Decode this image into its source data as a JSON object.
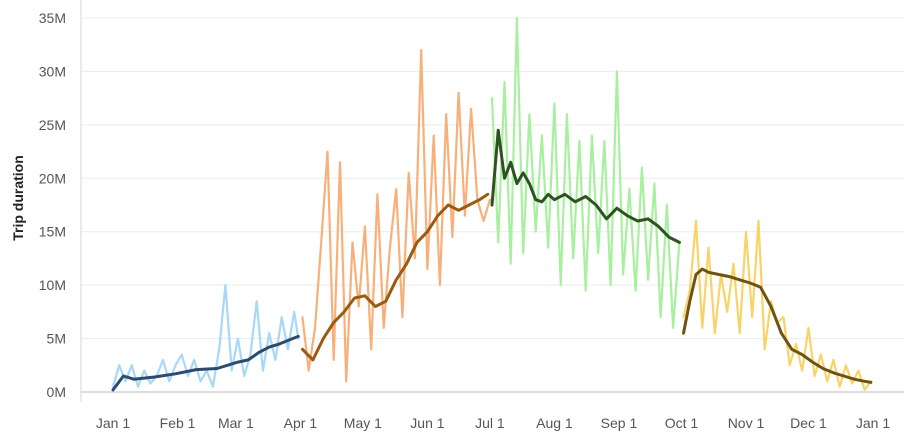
{
  "chart_data": {
    "type": "line",
    "title": "",
    "xlabel": "",
    "ylabel": "Trip duration",
    "ylim": [
      0,
      35000000
    ],
    "xlim": [
      "Jan 1",
      "Jan 1"
    ],
    "grid": true,
    "legend": "none",
    "y_ticks": [
      {
        "value": 0,
        "label": "0M"
      },
      {
        "value": 5000000,
        "label": "5M"
      },
      {
        "value": 10000000,
        "label": "10M"
      },
      {
        "value": 15000000,
        "label": "15M"
      },
      {
        "value": 20000000,
        "label": "20M"
      },
      {
        "value": 25000000,
        "label": "25M"
      },
      {
        "value": 30000000,
        "label": "30M"
      },
      {
        "value": 35000000,
        "label": "35M"
      }
    ],
    "x_ticks": [
      {
        "day": 0,
        "label": "Jan 1"
      },
      {
        "day": 31,
        "label": "Feb 1"
      },
      {
        "day": 59,
        "label": "Mar 1"
      },
      {
        "day": 90,
        "label": "Apr 1"
      },
      {
        "day": 120,
        "label": "May 1"
      },
      {
        "day": 151,
        "label": "Jun 1"
      },
      {
        "day": 181,
        "label": "Jul 1"
      },
      {
        "day": 212,
        "label": "Aug 1"
      },
      {
        "day": 243,
        "label": "Sep 1"
      },
      {
        "day": 273,
        "label": "Oct 1"
      },
      {
        "day": 304,
        "label": "Nov 1"
      },
      {
        "day": 334,
        "label": "Dec 1"
      },
      {
        "day": 365,
        "label": "Jan 1"
      }
    ],
    "series": [
      {
        "kind": "daily",
        "color": "#a8d8f8",
        "x": [
          0,
          3,
          6,
          9,
          12,
          15,
          18,
          21,
          24,
          27,
          30,
          33,
          36,
          39,
          42,
          45,
          48,
          51,
          54,
          57,
          60,
          63,
          66,
          69,
          72,
          75,
          78,
          81,
          84,
          87,
          89
        ],
        "y": [
          500000,
          2500000,
          1000000,
          2500000,
          500000,
          2000000,
          800000,
          1500000,
          3000000,
          1000000,
          2500000,
          3500000,
          1500000,
          3000000,
          1000000,
          2000000,
          500000,
          4000000,
          10000000,
          2000000,
          5000000,
          1500000,
          3500000,
          8500000,
          2000000,
          5500000,
          3000000,
          7000000,
          4000000,
          7500000,
          5000000
        ]
      },
      {
        "kind": "trend",
        "color": "#2c4a6e",
        "x": [
          0,
          5,
          10,
          20,
          30,
          40,
          50,
          60,
          65,
          70,
          75,
          80,
          85,
          89
        ],
        "y": [
          200000,
          1500000,
          1200000,
          1400000,
          1700000,
          2100000,
          2200000,
          2800000,
          3000000,
          3700000,
          4200000,
          4500000,
          4900000,
          5200000
        ]
      },
      {
        "kind": "daily",
        "color": "#f8b07a",
        "x": [
          91,
          94,
          97,
          100,
          103,
          106,
          109,
          112,
          115,
          118,
          121,
          124,
          127,
          130,
          133,
          136,
          139,
          142,
          145,
          148,
          151,
          154,
          157,
          160,
          163,
          166,
          169,
          172,
          175,
          178,
          181
        ],
        "y": [
          7000000,
          2000000,
          6000000,
          14000000,
          22500000,
          3000000,
          21500000,
          1000000,
          14000000,
          8000000,
          15500000,
          4000000,
          18500000,
          6000000,
          13500000,
          19000000,
          7000000,
          20500000,
          12500000,
          32000000,
          11500000,
          24000000,
          10000000,
          26000000,
          14500000,
          28000000,
          16500000,
          26500000,
          18000000,
          16000000,
          18000000
        ]
      },
      {
        "kind": "trend",
        "color": "#9a5a12",
        "x": [
          91,
          96,
          101,
          106,
          111,
          116,
          121,
          126,
          131,
          136,
          141,
          146,
          151,
          156,
          161,
          166,
          171,
          176,
          180
        ],
        "y": [
          4000000,
          3000000,
          5000000,
          6500000,
          7500000,
          8800000,
          9000000,
          8000000,
          8500000,
          10500000,
          12000000,
          14000000,
          15000000,
          16500000,
          17500000,
          17000000,
          17500000,
          18000000,
          18500000
        ]
      },
      {
        "kind": "daily",
        "color": "#a8f0a0",
        "x": [
          182,
          185,
          188,
          191,
          194,
          197,
          200,
          203,
          206,
          209,
          212,
          215,
          218,
          221,
          224,
          227,
          230,
          233,
          236,
          239,
          242,
          245,
          248,
          251,
          254,
          257,
          260,
          263,
          266,
          269,
          272
        ],
        "y": [
          27500000,
          14000000,
          29000000,
          12000000,
          35000000,
          13000000,
          26000000,
          15000000,
          24000000,
          13500000,
          27000000,
          10000000,
          26000000,
          12500000,
          23500000,
          9500000,
          24000000,
          13000000,
          23500000,
          10000000,
          30000000,
          11000000,
          19000000,
          9500000,
          21000000,
          10500000,
          19500000,
          7000000,
          17500000,
          6000000,
          14000000
        ]
      },
      {
        "kind": "trend",
        "color": "#2d5420",
        "x": [
          182,
          185,
          188,
          191,
          194,
          197,
          200,
          203,
          206,
          209,
          212,
          217,
          222,
          227,
          232,
          237,
          242,
          247,
          252,
          257,
          262,
          267,
          272
        ],
        "y": [
          17500000,
          24500000,
          20000000,
          21500000,
          19500000,
          20500000,
          19500000,
          18000000,
          17800000,
          18500000,
          18000000,
          18500000,
          17800000,
          18300000,
          17500000,
          16200000,
          17200000,
          16500000,
          16000000,
          16200000,
          15500000,
          14500000,
          14000000
        ]
      },
      {
        "kind": "daily",
        "color": "#f8d468",
        "x": [
          274,
          277,
          280,
          283,
          286,
          289,
          292,
          295,
          298,
          301,
          304,
          307,
          310,
          313,
          316,
          319,
          322,
          325,
          328,
          331,
          334,
          337,
          340,
          343,
          346,
          349,
          352,
          355,
          358,
          361,
          364
        ],
        "y": [
          7000000,
          9500000,
          16000000,
          6000000,
          13500000,
          5500000,
          11000000,
          7500000,
          12000000,
          5500000,
          15000000,
          7000000,
          16000000,
          4000000,
          8500000,
          6500000,
          7000000,
          2500000,
          4500000,
          2000000,
          6000000,
          1500000,
          3500000,
          1000000,
          3000000,
          500000,
          2500000,
          800000,
          2000000,
          200000,
          1000000
        ]
      },
      {
        "kind": "trend",
        "color": "#6e5410",
        "x": [
          274,
          277,
          280,
          283,
          286,
          291,
          296,
          301,
          306,
          311,
          316,
          321,
          326,
          331,
          336,
          341,
          346,
          351,
          356,
          361,
          364
        ],
        "y": [
          5500000,
          8500000,
          11000000,
          11500000,
          11200000,
          11000000,
          10800000,
          10500000,
          10200000,
          9800000,
          8000000,
          5500000,
          4000000,
          3500000,
          2800000,
          2200000,
          1800000,
          1500000,
          1200000,
          1000000,
          900000
        ]
      }
    ]
  }
}
